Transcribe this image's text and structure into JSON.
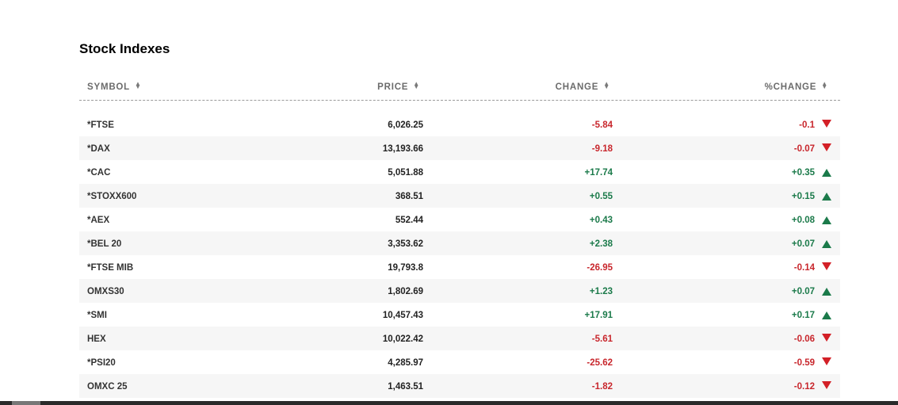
{
  "title": "Stock Indexes",
  "columns": {
    "symbol": "SYMBOL",
    "price": "PRICE",
    "change": "CHANGE",
    "pct_change": "%CHANGE"
  },
  "colors": {
    "negative": "#c8262c",
    "positive": "#1b7a4a"
  },
  "rows": [
    {
      "symbol": "*FTSE",
      "price": "6,026.25",
      "change": "-5.84",
      "pct": "-0.1",
      "dir": "down"
    },
    {
      "symbol": "*DAX",
      "price": "13,193.66",
      "change": "-9.18",
      "pct": "-0.07",
      "dir": "down"
    },
    {
      "symbol": "*CAC",
      "price": "5,051.88",
      "change": "+17.74",
      "pct": "+0.35",
      "dir": "up"
    },
    {
      "symbol": "*STOXX600",
      "price": "368.51",
      "change": "+0.55",
      "pct": "+0.15",
      "dir": "up"
    },
    {
      "symbol": "*AEX",
      "price": "552.44",
      "change": "+0.43",
      "pct": "+0.08",
      "dir": "up"
    },
    {
      "symbol": "*BEL 20",
      "price": "3,353.62",
      "change": "+2.38",
      "pct": "+0.07",
      "dir": "up"
    },
    {
      "symbol": "*FTSE MIB",
      "price": "19,793.8",
      "change": "-26.95",
      "pct": "-0.14",
      "dir": "down"
    },
    {
      "symbol": "OMXS30",
      "price": "1,802.69",
      "change": "+1.23",
      "pct": "+0.07",
      "dir": "up"
    },
    {
      "symbol": "*SMI",
      "price": "10,457.43",
      "change": "+17.91",
      "pct": "+0.17",
      "dir": "up"
    },
    {
      "symbol": "HEX",
      "price": "10,022.42",
      "change": "-5.61",
      "pct": "-0.06",
      "dir": "down"
    },
    {
      "symbol": "*PSI20",
      "price": "4,285.97",
      "change": "-25.62",
      "pct": "-0.59",
      "dir": "down"
    },
    {
      "symbol": "OMXC 25",
      "price": "1,463.51",
      "change": "-1.82",
      "pct": "-0.12",
      "dir": "down"
    }
  ]
}
